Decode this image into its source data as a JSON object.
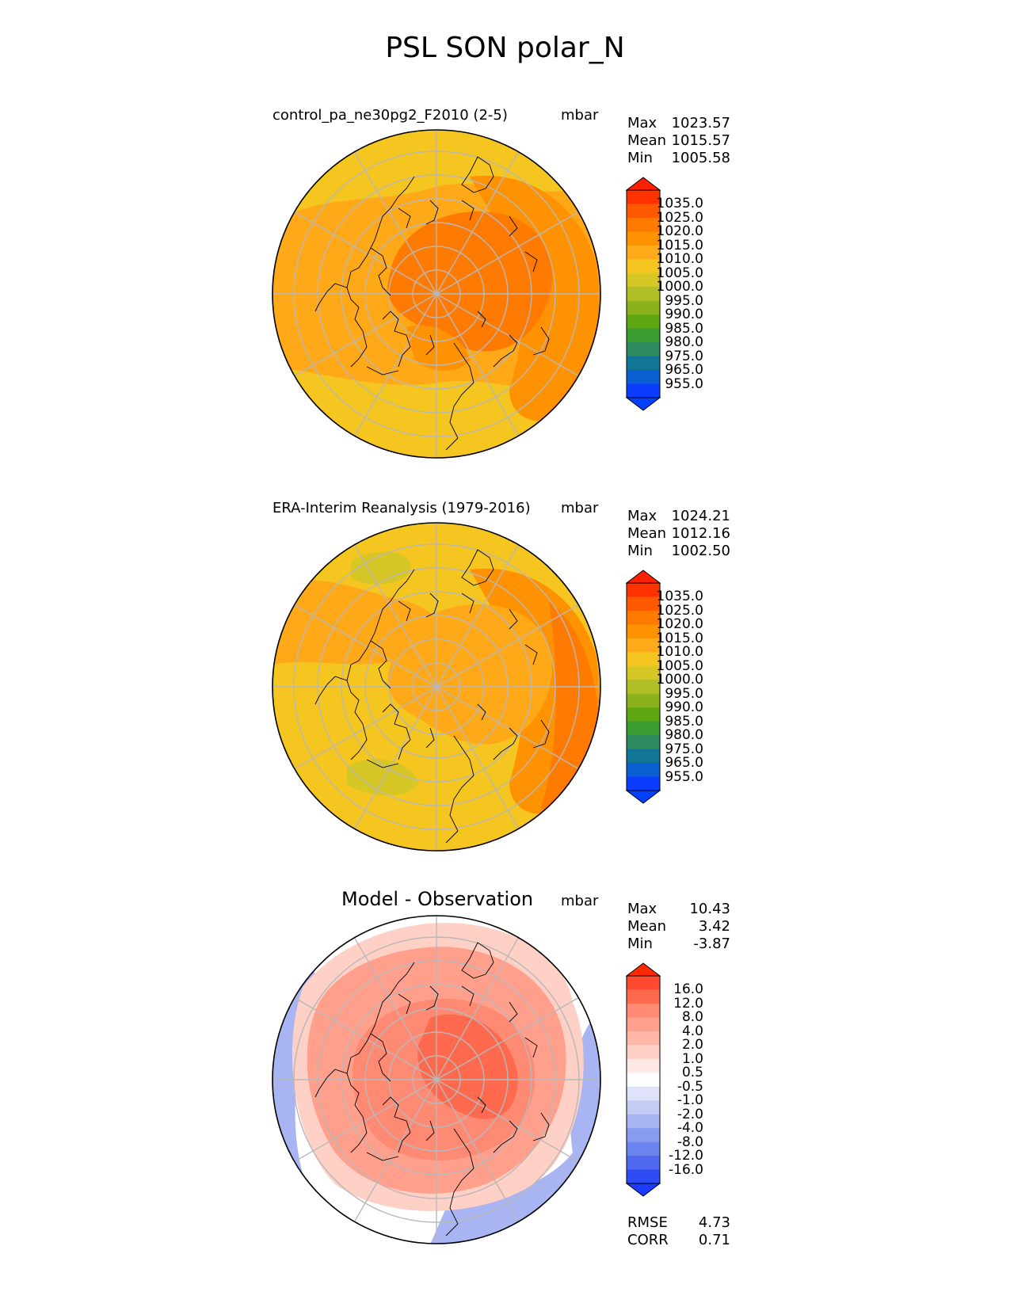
{
  "title": "PSL SON polar_N",
  "panels": [
    {
      "id": "test",
      "subtitle": "control_pa_ne30pg2_F2010 (2-5)",
      "units": "mbar",
      "stats": [
        {
          "label": "Max",
          "value": "1023.57"
        },
        {
          "label": "Mean",
          "value": "1015.57"
        },
        {
          "label": "Min",
          "value": "1005.58"
        }
      ],
      "colorbar": {
        "labels": [
          "1035.0",
          "1025.0",
          "1020.0",
          "1015.0",
          "1010.0",
          "1005.0",
          "1000.0",
          "995.0",
          "990.0",
          "985.0",
          "980.0",
          "975.0",
          "965.0",
          "955.0"
        ],
        "colors": [
          "#ff3200",
          "#ff5a00",
          "#ff7a00",
          "#ff9200",
          "#ffaa18",
          "#f5c520",
          "#d6c626",
          "#b1bf27",
          "#8bb21c",
          "#5ea814",
          "#389c30",
          "#2e8a60",
          "#127699",
          "#0a5fd2",
          "#0a3dff"
        ],
        "extend_top_color": "#ff2000",
        "extend_bottom_color": "#0040ff"
      },
      "map": {
        "base_color": "#ffa818",
        "fields": [
          {
            "color": "#f5c520",
            "region": "upper-rim"
          },
          {
            "color": "#f5c520",
            "region": "lower-rim"
          },
          {
            "color": "#ff9200",
            "region": "right-crescent"
          },
          {
            "color": "#ff7a00",
            "region": "central-high"
          },
          {
            "color": "#ff9200",
            "region": "lower-center"
          }
        ]
      }
    },
    {
      "id": "ref",
      "subtitle": "ERA-Interim Reanalysis (1979-2016)",
      "units": "mbar",
      "stats": [
        {
          "label": "Max",
          "value": "1024.21"
        },
        {
          "label": "Mean",
          "value": "1012.16"
        },
        {
          "label": "Min",
          "value": "1002.50"
        }
      ],
      "colorbar": {
        "labels": [
          "1035.0",
          "1025.0",
          "1020.0",
          "1015.0",
          "1010.0",
          "1005.0",
          "1000.0",
          "995.0",
          "990.0",
          "985.0",
          "980.0",
          "975.0",
          "965.0",
          "955.0"
        ],
        "colors": [
          "#ff3200",
          "#ff5a00",
          "#ff7a00",
          "#ff9200",
          "#ffaa18",
          "#f5c520",
          "#d6c626",
          "#b1bf27",
          "#8bb21c",
          "#5ea814",
          "#389c30",
          "#2e8a60",
          "#127699",
          "#0a5fd2",
          "#0a3dff"
        ],
        "extend_top_color": "#ff2000",
        "extend_bottom_color": "#0040ff"
      },
      "map": {
        "base_color": "#f5c520",
        "fields": [
          {
            "color": "#ffa818",
            "region": "left-band"
          },
          {
            "color": "#ff9200",
            "region": "right-crescent"
          },
          {
            "color": "#ff7a00",
            "region": "right-edge"
          },
          {
            "color": "#ffa818",
            "region": "central-high"
          },
          {
            "color": "#d6c626",
            "region": "green-patch-top"
          },
          {
            "color": "#d6c626",
            "region": "green-patch-bottom"
          }
        ]
      }
    },
    {
      "id": "diff",
      "subtitle": "Model - Observation",
      "units": "mbar",
      "stats": [
        {
          "label": "Max",
          "value": "10.43"
        },
        {
          "label": "Mean",
          "value": "3.42"
        },
        {
          "label": "Min",
          "value": "-3.87"
        }
      ],
      "extra_stats": [
        {
          "label": "RMSE",
          "value": "4.73"
        },
        {
          "label": "CORR",
          "value": "0.71"
        }
      ],
      "colorbar": {
        "labels": [
          "16.0",
          "12.0",
          "8.0",
          "4.0",
          "2.0",
          "1.0",
          "0.5",
          "-0.5",
          "-1.0",
          "-2.0",
          "-4.0",
          "-8.0",
          "-12.0",
          "-16.0"
        ],
        "colors": [
          "#ff4a30",
          "#ff6a4f",
          "#ff8a73",
          "#ff9f8c",
          "#ffb7a8",
          "#ffd0c6",
          "#ffe9e4",
          "#ffffff",
          "#dfe3fa",
          "#c5cdf5",
          "#a8b5f2",
          "#8a9cf0",
          "#6c84f0",
          "#4f69f0",
          "#2f4bf5"
        ],
        "extend_top_color": "#ff2a00",
        "extend_bottom_color": "#1b3bff"
      },
      "map": {
        "base_color": "#ffffff",
        "fields": [
          {
            "color": "#a8b5f2",
            "region": "outer-blue-left"
          },
          {
            "color": "#a8b5f2",
            "region": "outer-blue-right"
          },
          {
            "color": "#ffd0c6",
            "region": "pink-ring"
          },
          {
            "color": "#ff9f8c",
            "region": "salmon-disc"
          },
          {
            "color": "#ff8a73",
            "region": "inner-disc"
          },
          {
            "color": "#ff6a4f",
            "region": "core"
          }
        ]
      }
    }
  ],
  "chart_data": [
    {
      "type": "heatmap",
      "title": "control_pa_ne30pg2_F2010 (2-5)",
      "projection": "north polar stereographic",
      "units": "mbar",
      "max": 1023.57,
      "mean": 1015.57,
      "min": 1005.58,
      "levels": [
        955,
        965,
        975,
        980,
        985,
        990,
        995,
        1000,
        1005,
        1010,
        1015,
        1020,
        1025,
        1035
      ]
    },
    {
      "type": "heatmap",
      "title": "ERA-Interim Reanalysis (1979-2016)",
      "projection": "north polar stereographic",
      "units": "mbar",
      "max": 1024.21,
      "mean": 1012.16,
      "min": 1002.5,
      "levels": [
        955,
        965,
        975,
        980,
        985,
        990,
        995,
        1000,
        1005,
        1010,
        1015,
        1020,
        1025,
        1035
      ]
    },
    {
      "type": "heatmap",
      "title": "Model - Observation",
      "projection": "north polar stereographic",
      "units": "mbar",
      "max": 10.43,
      "mean": 3.42,
      "min": -3.87,
      "rmse": 4.73,
      "corr": 0.71,
      "levels": [
        -16,
        -12,
        -8,
        -4,
        -2,
        -1,
        -0.5,
        0.5,
        1,
        2,
        4,
        8,
        12,
        16
      ]
    }
  ]
}
